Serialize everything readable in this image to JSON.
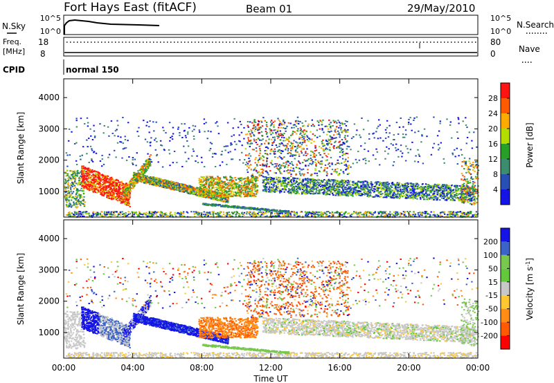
{
  "header": {
    "station": "Fort Hays East (fitACF)",
    "beam": "Beam 01",
    "date": "29/May/2010"
  },
  "noise_panel": {
    "left_label": "N.Sky",
    "right_label": "N.Search",
    "left_ticks": [
      "10^5",
      "10^0"
    ],
    "right_ticks": [
      "10^5",
      "10^0"
    ]
  },
  "freq_panel": {
    "left_label_line1": "Freq.",
    "left_label_line2": "[MHz]",
    "left_ticks": [
      "18",
      "8"
    ],
    "right_label": "Nave",
    "right_ticks": [
      "80",
      "0"
    ]
  },
  "cpid_panel": {
    "label": "CPID",
    "mode": "normal 150"
  },
  "colors": {
    "power_scale": [
      "#1414e6",
      "#2850b4",
      "#3c8c6e",
      "#28a028",
      "#b4dc00",
      "#ffaa00",
      "#ff5a00",
      "#ff1414"
    ],
    "velocity_scale": [
      "#1414e6",
      "#3c64c8",
      "#78c850",
      "#64c83c",
      "#c8c8c8",
      "#ffc832",
      "#ff8c14",
      "#ff5a00",
      "#ff0000"
    ]
  },
  "chart_data": [
    {
      "type": "heatmap",
      "title": "",
      "xlabel": "",
      "ylabel": "Slant Range [km]",
      "x_ticks": [
        "00:00",
        "04:00",
        "08:00",
        "12:00",
        "16:00",
        "20:00",
        "00:00"
      ],
      "y_ticks": [
        "1000",
        "2000",
        "3000",
        "4000"
      ],
      "ylim": [
        180,
        4600
      ],
      "colorbar": {
        "label": "Power [dB]",
        "ticks": [
          "4",
          "8",
          "12",
          "16",
          "20",
          "24",
          "28"
        ],
        "range": [
          0,
          32
        ]
      }
    },
    {
      "type": "heatmap",
      "title": "",
      "xlabel": "Time UT",
      "ylabel": "Slant Range [km]",
      "x_ticks": [
        "00:00",
        "04:00",
        "08:00",
        "12:00",
        "16:00",
        "20:00",
        "00:00"
      ],
      "y_ticks": [
        "1000",
        "2000",
        "3000",
        "4000"
      ],
      "ylim": [
        180,
        4600
      ],
      "colorbar": {
        "label": "Velocity [m s^-1]",
        "ticks": [
          "200",
          "100",
          "50",
          "15",
          "-15",
          "-50",
          "-100",
          "-200"
        ],
        "range": [
          -250,
          250
        ]
      }
    }
  ]
}
